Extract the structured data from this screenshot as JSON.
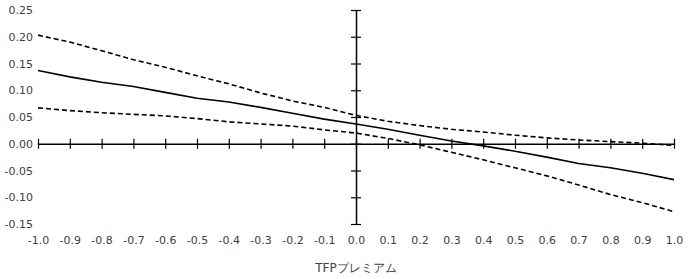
{
  "chart_data": {
    "type": "line",
    "x_label": "TFPプレミアム",
    "x": [
      -1.0,
      -0.9,
      -0.8,
      -0.7,
      -0.6,
      -0.5,
      -0.4,
      -0.3,
      -0.2,
      -0.1,
      0.0,
      0.1,
      0.2,
      0.3,
      0.4,
      0.5,
      0.6,
      0.7,
      0.8,
      0.9,
      1.0
    ],
    "series": [
      {
        "color": "#000000",
        "line_style": "solid",
        "values": [
          0.137,
          0.125,
          0.115,
          0.107,
          0.096,
          0.085,
          0.078,
          0.068,
          0.057,
          0.046,
          0.037,
          0.027,
          0.016,
          0.005,
          -0.004,
          -0.014,
          -0.025,
          -0.037,
          -0.045,
          -0.055,
          -0.067
        ]
      },
      {
        "color": "#000000",
        "line_style": "dashed",
        "values": [
          0.203,
          0.19,
          0.174,
          0.157,
          0.143,
          0.127,
          0.112,
          0.095,
          0.08,
          0.068,
          0.053,
          0.042,
          0.034,
          0.027,
          0.022,
          0.016,
          0.011,
          0.007,
          0.004,
          0.001,
          -0.003
        ]
      },
      {
        "color": "#000000",
        "line_style": "dashed",
        "values": [
          0.067,
          0.062,
          0.058,
          0.055,
          0.052,
          0.047,
          0.041,
          0.037,
          0.033,
          0.026,
          0.02,
          0.01,
          -0.002,
          -0.016,
          -0.03,
          -0.045,
          -0.06,
          -0.077,
          -0.095,
          -0.11,
          -0.127
        ]
      }
    ],
    "xlim": [
      -1.0,
      1.0
    ],
    "xticks": [
      {
        "value": -1.0,
        "label": "-1.0"
      },
      -0.9,
      -0.8,
      -0.7,
      -0.6,
      -0.5,
      -0.4,
      -0.3,
      -0.2,
      -0.1,
      {
        "value": 0.0,
        "label": "0.0"
      },
      0.1,
      0.2,
      0.3,
      0.4,
      0.5,
      0.6,
      0.7,
      0.8,
      0.9,
      {
        "value": 1.0,
        "label": "1.0"
      }
    ],
    "ylim": [
      -0.15,
      0.25
    ],
    "yticks": [
      -0.15,
      {
        "value": -0.1,
        "label": "-0.10"
      },
      -0.05,
      {
        "value": 0.0,
        "label": "0.00"
      },
      0.05,
      {
        "value": 0.1,
        "label": "0.10"
      },
      0.15,
      {
        "value": 0.2,
        "label": "0.20"
      },
      0.25
    ],
    "grid": false
  }
}
